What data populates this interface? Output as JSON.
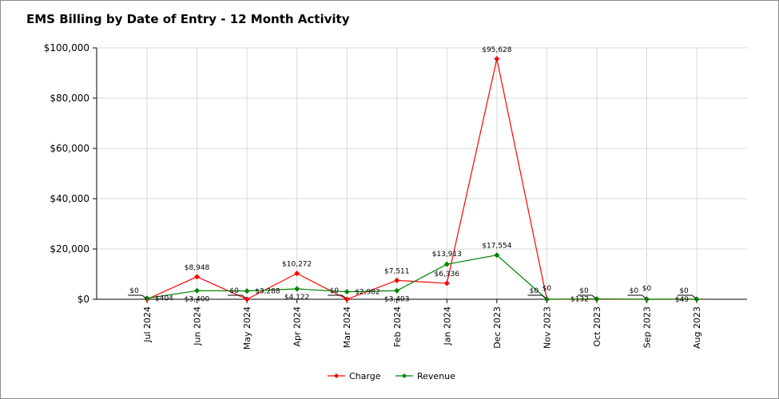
{
  "chart_data": {
    "type": "line",
    "title": "EMS Billing by Date of Entry - 12 Month Activity",
    "xlabel": "",
    "ylabel": "",
    "categories": [
      "Jul 2024",
      "Jun 2024",
      "May 2024",
      "Apr 2024",
      "Mar 2024",
      "Feb 2024",
      "Jan 2024",
      "Dec 2023",
      "Nov 2023",
      "Oct 2023",
      "Sep 2023",
      "Aug 2023"
    ],
    "ylim": [
      0,
      100000
    ],
    "yticks": [
      0,
      20000,
      40000,
      60000,
      80000,
      100000
    ],
    "ytick_labels": [
      "$0",
      "$20,000",
      "$40,000",
      "$60,000",
      "$80,000",
      "$100,000"
    ],
    "grid": true,
    "legend_position": "bottom",
    "series": [
      {
        "name": "Charge",
        "color": "#ff0000",
        "values": [
          0,
          8948,
          0,
          10272,
          0,
          7511,
          6336,
          95628,
          0,
          0,
          0,
          0
        ],
        "labels": [
          "$0",
          "$8,948",
          "$0",
          "$10,272",
          "$0",
          "$7,511",
          "$6,336",
          "$95,628",
          "$0",
          "$0",
          "$0",
          "$0"
        ]
      },
      {
        "name": "Revenue",
        "color": "#008000",
        "values": [
          404,
          3400,
          3288,
          4122,
          2982,
          3403,
          13913,
          17554,
          0,
          132,
          0,
          49
        ],
        "labels": [
          "$404",
          "$3,400",
          "$3,288",
          "$4,122",
          "$2,982",
          "$3,403",
          "$13,913",
          "$17,554",
          "$0",
          "$132",
          "$0",
          "$49"
        ]
      }
    ]
  }
}
